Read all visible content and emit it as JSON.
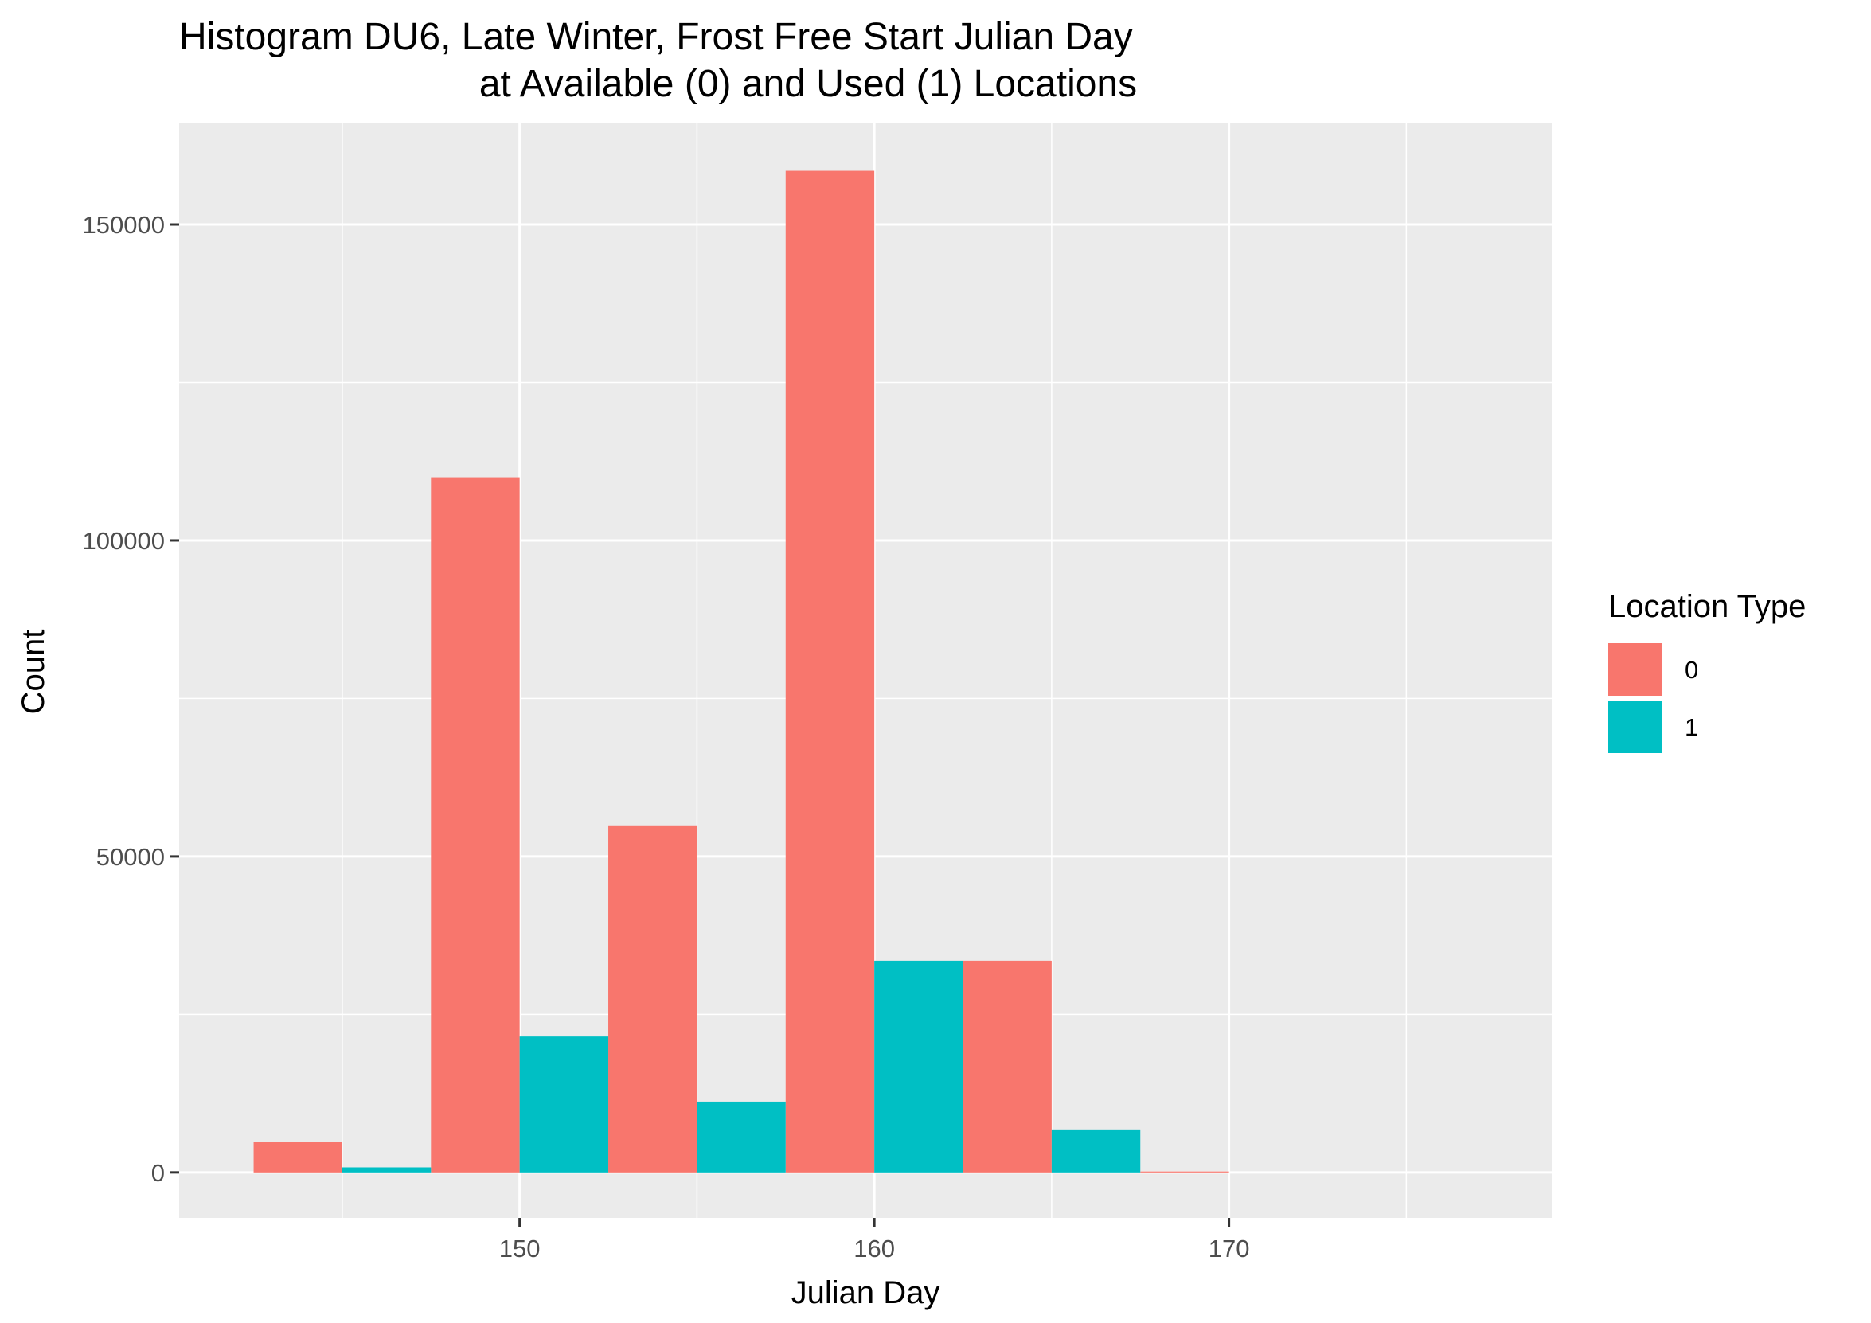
{
  "chart_data": {
    "type": "bar",
    "title_lines": [
      "Histogram DU6, Late Winter, Frost Free Start Julian Day",
      "at Available (0) and Used (1) Locations"
    ],
    "xlabel": "Julian Day",
    "ylabel": "Count",
    "xlim": [
      140.4,
      179.1
    ],
    "ylim": [
      -7200,
      166000
    ],
    "x_ticks": [
      150,
      160,
      170
    ],
    "x_minor_ticks": [
      145,
      155,
      165,
      175
    ],
    "y_ticks": [
      0,
      50000,
      100000,
      150000
    ],
    "y_minor_ticks": [
      25000,
      75000,
      125000
    ],
    "x_tick_labels": [
      "150",
      "160",
      "170"
    ],
    "y_tick_labels": [
      "0",
      "50000",
      "100000",
      "150000"
    ],
    "grid": true,
    "legend": {
      "title": "Location Type",
      "position": "right",
      "entries": [
        {
          "label": "0",
          "color": "#F8766D"
        },
        {
          "label": "1",
          "color": "#00BFC4"
        }
      ]
    },
    "bin_width": 5,
    "series": [
      {
        "key": "0",
        "color": "#F8766D",
        "bars": [
          {
            "x0": 142.5,
            "x1": 145.0,
            "value": 4800
          },
          {
            "x0": 147.5,
            "x1": 150.0,
            "value": 110000
          },
          {
            "x0": 152.5,
            "x1": 155.0,
            "value": 54800
          },
          {
            "x0": 157.5,
            "x1": 160.0,
            "value": 158500
          },
          {
            "x0": 162.5,
            "x1": 165.0,
            "value": 33500
          },
          {
            "x0": 167.5,
            "x1": 170.0,
            "value": 150
          }
        ]
      },
      {
        "key": "1",
        "color": "#00BFC4",
        "bars": [
          {
            "x0": 145.0,
            "x1": 147.5,
            "value": 800
          },
          {
            "x0": 150.0,
            "x1": 152.5,
            "value": 21500
          },
          {
            "x0": 155.0,
            "x1": 157.5,
            "value": 11200
          },
          {
            "x0": 160.0,
            "x1": 162.5,
            "value": 33500
          },
          {
            "x0": 165.0,
            "x1": 167.5,
            "value": 6800
          }
        ]
      }
    ]
  },
  "style": {
    "panel_bg": "#EBEBEB",
    "grid_color": "#FFFFFF",
    "tick_color": "#333333"
  }
}
